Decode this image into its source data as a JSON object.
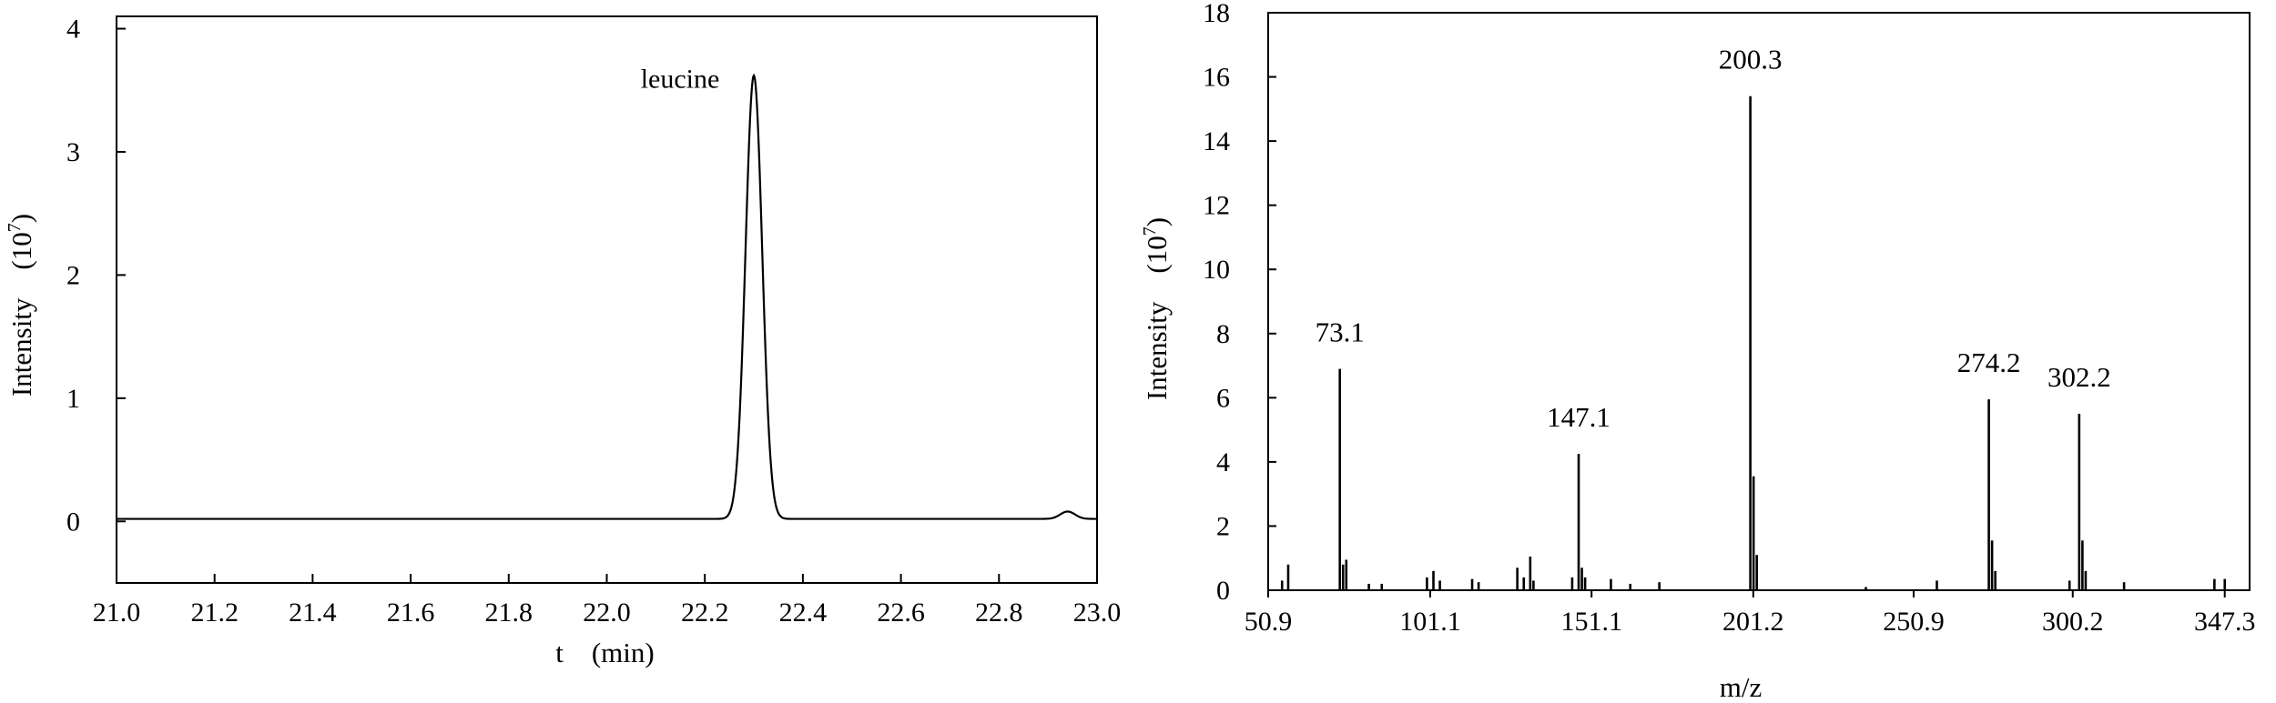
{
  "chart_data": [
    {
      "type": "line",
      "title": "",
      "xlabel": "t　(min)",
      "ylabel": "Intensity　(",
      "ylabel_base": "10",
      "ylabel_exp": "7",
      "ylabel_close": ")",
      "xlim": [
        21.0,
        23.0
      ],
      "ylim": [
        -0.5,
        4.1
      ],
      "x_ticks": [
        21.0,
        21.2,
        21.4,
        21.6,
        21.8,
        22.0,
        22.2,
        22.4,
        22.6,
        22.8,
        23.0
      ],
      "x_tick_labels": [
        "21.0",
        "21.2",
        "21.4",
        "21.6",
        "21.8",
        "22.0",
        "22.2",
        "22.4",
        "22.6",
        "22.8",
        "23.0"
      ],
      "y_ticks": [
        0,
        1,
        2,
        3,
        4
      ],
      "y_tick_labels": [
        "0",
        "1",
        "2",
        "3",
        "4"
      ],
      "grid": false,
      "peak": {
        "x": 22.3,
        "y": 3.62,
        "sigma": 0.017,
        "baseline": 0.02
      },
      "minor_bump": {
        "x": 22.94,
        "y": 0.06,
        "sigma": 0.015
      },
      "annotation": {
        "text": "leucine",
        "x": 22.23,
        "y": 3.52
      }
    },
    {
      "type": "bar",
      "title": "",
      "xlabel": "m/z",
      "ylabel": "Intensity　(",
      "ylabel_base": "10",
      "ylabel_exp": "7",
      "ylabel_close": ")",
      "xlim": [
        50.9,
        355
      ],
      "ylim": [
        0,
        18
      ],
      "x_ticks": [
        50.9,
        101.1,
        151.1,
        201.2,
        250.9,
        300.2,
        347.3
      ],
      "x_tick_labels": [
        "50.9",
        "101.1",
        "151.1",
        "201.2",
        "250.9",
        "300.2",
        "347.3"
      ],
      "y_ticks": [
        0,
        2,
        4,
        6,
        8,
        10,
        12,
        14,
        16,
        18
      ],
      "y_tick_labels": [
        "0",
        "2",
        "4",
        "6",
        "8",
        "10",
        "12",
        "14",
        "16",
        "18"
      ],
      "grid": false,
      "x": [
        55.2,
        57.1,
        73.1,
        74.1,
        75.1,
        82.1,
        86.1,
        100.1,
        102.1,
        104.1,
        114.1,
        116.1,
        128.1,
        130.1,
        132.1,
        133.1,
        145.1,
        147.1,
        148.1,
        149.1,
        157.1,
        163.1,
        172.1,
        200.3,
        201.3,
        202.3,
        236.1,
        258.1,
        274.2,
        275.2,
        276.2,
        299.2,
        302.2,
        303.2,
        304.2,
        316.1,
        344.1,
        347.3
      ],
      "values": [
        0.3,
        0.8,
        6.9,
        0.8,
        0.95,
        0.2,
        0.2,
        0.4,
        0.6,
        0.3,
        0.35,
        0.25,
        0.7,
        0.4,
        1.05,
        0.3,
        0.4,
        4.25,
        0.7,
        0.4,
        0.35,
        0.2,
        0.25,
        15.4,
        3.55,
        1.1,
        0.1,
        0.3,
        5.95,
        1.55,
        0.6,
        0.3,
        5.5,
        1.55,
        0.6,
        0.25,
        0.35,
        0.35
      ],
      "peak_labels": [
        {
          "text": "73.1",
          "x": 73.1,
          "y": 6.9
        },
        {
          "text": "147.1",
          "x": 147.1,
          "y": 4.25
        },
        {
          "text": "200.3",
          "x": 200.3,
          "y": 15.4
        },
        {
          "text": "274.2",
          "x": 274.2,
          "y": 5.95
        },
        {
          "text": "302.2",
          "x": 302.2,
          "y": 5.5
        }
      ]
    }
  ]
}
